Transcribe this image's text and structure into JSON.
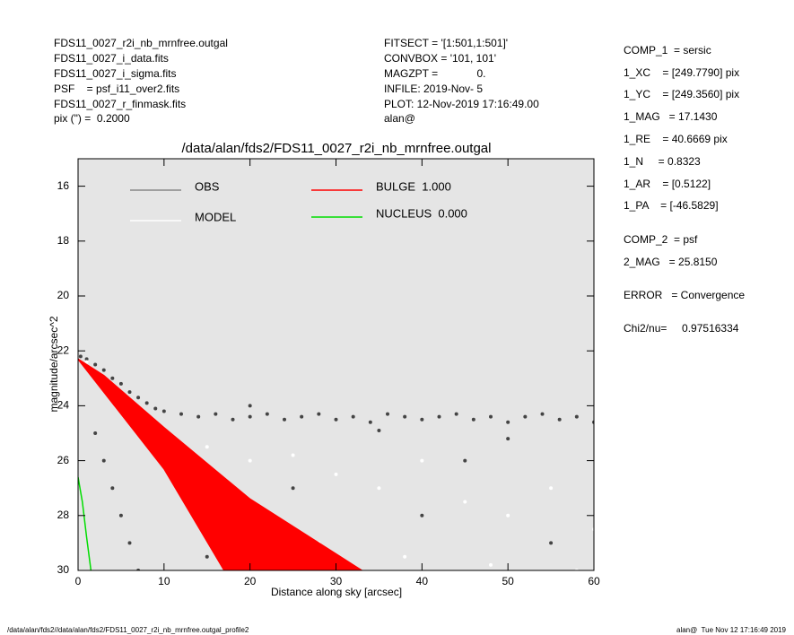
{
  "header": {
    "left": [
      "FDS11_0027_r2i_nb_mrnfree.outgal",
      "FDS11_0027_i_data.fits",
      "FDS11_0027_i_sigma.fits",
      "PSF    = psf_i11_over2.fits",
      "FDS11_0027_r_finmask.fits",
      "pix (\") =  0.2000"
    ],
    "middle": [
      "FITSECT = '[1:501,1:501]'",
      "CONVBOX = '101, 101'",
      "MAGZPT =             0.",
      "INFILE: 2019-Nov- 5",
      "PLOT: 12-Nov-2019 17:16:49.00",
      "alan@"
    ]
  },
  "panel": [
    "COMP_1  = sersic",
    "1_XC    = [249.7790] pix",
    "1_YC    = [249.3560] pix",
    "1_MAG   = 17.1430",
    "1_RE    = 40.6669 pix",
    "1_N     = 0.8323",
    "1_AR    = [0.5122]",
    "1_PA    = [-46.5829]",
    "COMP_2  = psf",
    "2_MAG   = 25.8150",
    "ERROR   = Convergence",
    "Chi2/nu=     0.97516334"
  ],
  "footer": {
    "left": "/data/alan/fds2//data/alan/fds2/FDS11_0027_r2i_nb_mrnfree.outgal_profile2",
    "right": "alan@  Tue Nov 12 17:16:49 2019"
  },
  "chart_data": {
    "type": "scatter",
    "title": "/data/alan/fds2/FDS11_0027_r2i_nb_mrnfree.outgal",
    "x_label": "Distance along sky [arcsec]",
    "y_label": "magnitude/arcsec^2",
    "xlim": [
      0,
      60
    ],
    "xticks": [
      0,
      10,
      20,
      30,
      40,
      50,
      60
    ],
    "ylim": [
      30,
      15
    ],
    "yticks": [
      16,
      18,
      20,
      22,
      24,
      26,
      28,
      30
    ],
    "series": [
      {
        "name": "OBS",
        "color": "#444444",
        "legend_color": "#888888",
        "mode": "points",
        "x": [
          0.3,
          1,
          2,
          3,
          4,
          5,
          6,
          7,
          8,
          9,
          10,
          12,
          14,
          16,
          18,
          20,
          22,
          24,
          26,
          28,
          30,
          32,
          34,
          36,
          38,
          40,
          42,
          44,
          46,
          48,
          50,
          52,
          54,
          56,
          58,
          60,
          2,
          3,
          4,
          5,
          6,
          7,
          25,
          40,
          55,
          15,
          45,
          35,
          50,
          20
        ],
        "values": [
          22.2,
          22.3,
          22.5,
          22.7,
          23.0,
          23.2,
          23.5,
          23.7,
          23.9,
          24.1,
          24.2,
          24.3,
          24.4,
          24.3,
          24.5,
          24.4,
          24.3,
          24.5,
          24.4,
          24.3,
          24.5,
          24.4,
          24.6,
          24.3,
          24.4,
          24.5,
          24.4,
          24.3,
          24.5,
          24.4,
          24.6,
          24.4,
          24.3,
          24.5,
          24.4,
          24.6,
          25,
          26,
          27,
          28,
          29,
          30,
          27,
          28,
          29,
          29.5,
          26,
          24.9,
          25.2,
          24.0
        ]
      },
      {
        "name": "MODEL",
        "color": "#ffffff",
        "legend_color": "#ffffff",
        "mode": "points",
        "x": [
          1,
          3,
          6,
          10,
          15,
          20,
          25,
          30,
          35,
          40,
          45,
          50,
          55,
          60,
          28,
          38,
          48,
          58,
          22,
          12
        ],
        "values": [
          22.4,
          23,
          24,
          25,
          25.5,
          26,
          25.8,
          26.5,
          27,
          26,
          27.5,
          28,
          27,
          28.5,
          29,
          29.5,
          29.8,
          30,
          28,
          27
        ]
      },
      {
        "name": "BULGE  1.000",
        "color": "#ff0000",
        "legend_color": "#ff0000",
        "mode": "area",
        "x": [
          0,
          5,
          10,
          17,
          33,
          20,
          10,
          3,
          0
        ],
        "values": [
          22.3,
          24.3,
          26.3,
          30,
          30,
          27.4,
          24.8,
          22.9,
          22.3
        ]
      },
      {
        "name": "NUCLEUS  0.000",
        "color": "#00dd00",
        "legend_color": "#00dd00",
        "mode": "line",
        "x": [
          0,
          0.5,
          1,
          1.5
        ],
        "values": [
          26.6,
          27.5,
          28.8,
          30
        ]
      }
    ]
  }
}
